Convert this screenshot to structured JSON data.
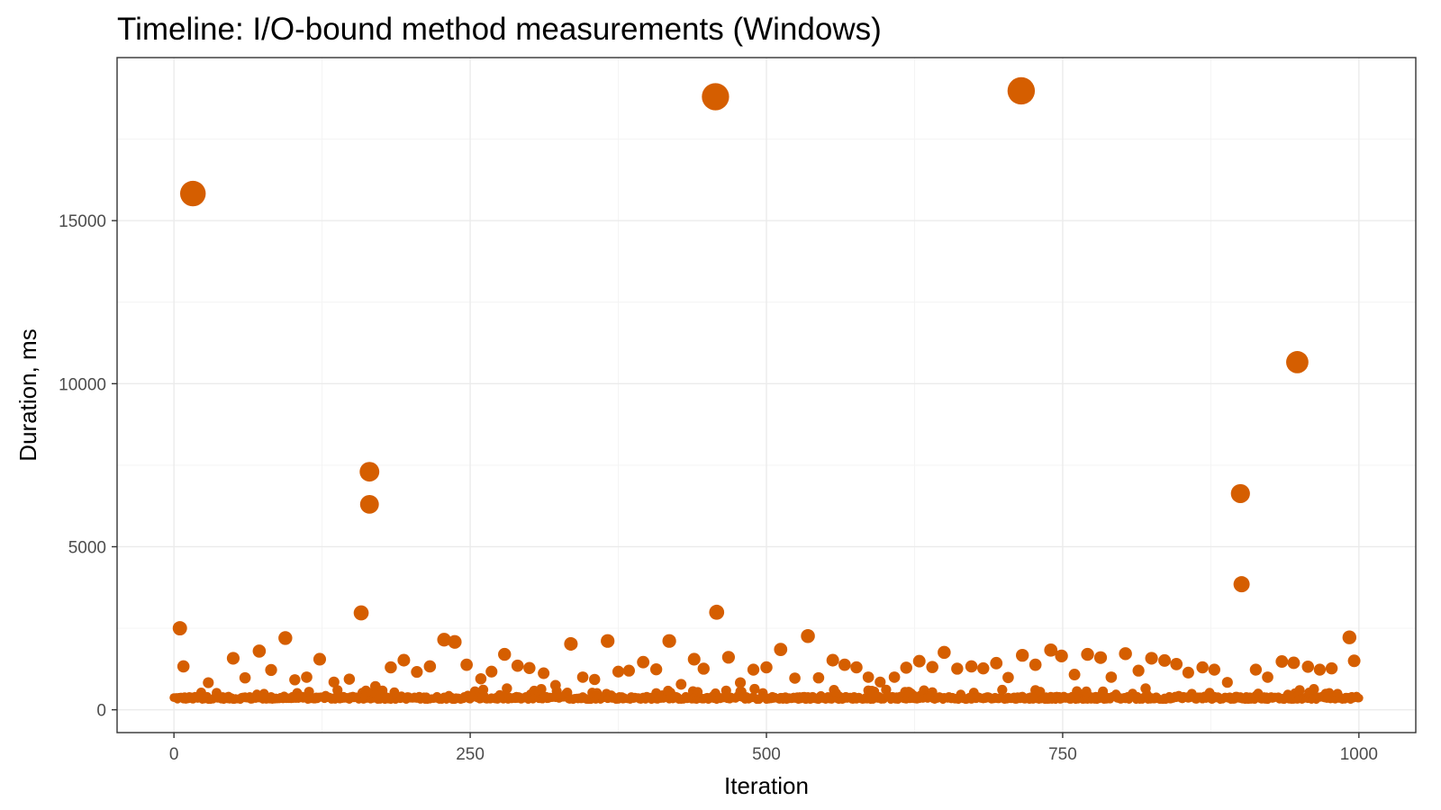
{
  "chart_data": {
    "type": "scatter",
    "title": "Timeline: I/O-bound method measurements (Windows)",
    "xlabel": "Iteration",
    "ylabel": "Duration, ms",
    "xlim": [
      -48,
      1048
    ],
    "ylim": [
      -700,
      20000
    ],
    "x_ticks": [
      0,
      250,
      500,
      750,
      1000
    ],
    "x_tick_labels": [
      "0",
      "250",
      "500",
      "750",
      "1000"
    ],
    "y_ticks": [
      0,
      5000,
      10000,
      15000
    ],
    "y_tick_labels": [
      "0",
      "5000",
      "10000",
      "15000"
    ],
    "grid": true,
    "legend": "none",
    "point_color": "#D55E00",
    "point_size_by": "duration",
    "baseline": {
      "x_range": [
        0,
        1000
      ],
      "typical_value": 330,
      "jitter": 120,
      "count": 1001
    },
    "points": [
      {
        "x": 5,
        "y": 2500
      },
      {
        "x": 8,
        "y": 1330
      },
      {
        "x": 16,
        "y": 15830
      },
      {
        "x": 29,
        "y": 830
      },
      {
        "x": 50,
        "y": 1580
      },
      {
        "x": 60,
        "y": 980
      },
      {
        "x": 72,
        "y": 1800
      },
      {
        "x": 82,
        "y": 1220
      },
      {
        "x": 94,
        "y": 2200
      },
      {
        "x": 102,
        "y": 920
      },
      {
        "x": 112,
        "y": 1000
      },
      {
        "x": 123,
        "y": 1550
      },
      {
        "x": 135,
        "y": 850
      },
      {
        "x": 148,
        "y": 940
      },
      {
        "x": 158,
        "y": 2970
      },
      {
        "x": 165,
        "y": 7300
      },
      {
        "x": 165,
        "y": 6300
      },
      {
        "x": 170,
        "y": 720
      },
      {
        "x": 183,
        "y": 1300
      },
      {
        "x": 194,
        "y": 1520
      },
      {
        "x": 205,
        "y": 1160
      },
      {
        "x": 216,
        "y": 1330
      },
      {
        "x": 228,
        "y": 2150
      },
      {
        "x": 237,
        "y": 2080
      },
      {
        "x": 247,
        "y": 1380
      },
      {
        "x": 259,
        "y": 950
      },
      {
        "x": 268,
        "y": 1170
      },
      {
        "x": 279,
        "y": 1700
      },
      {
        "x": 290,
        "y": 1350
      },
      {
        "x": 300,
        "y": 1280
      },
      {
        "x": 312,
        "y": 1120
      },
      {
        "x": 322,
        "y": 750
      },
      {
        "x": 335,
        "y": 2020
      },
      {
        "x": 345,
        "y": 1000
      },
      {
        "x": 355,
        "y": 930
      },
      {
        "x": 366,
        "y": 2110
      },
      {
        "x": 375,
        "y": 1170
      },
      {
        "x": 384,
        "y": 1200
      },
      {
        "x": 396,
        "y": 1460
      },
      {
        "x": 407,
        "y": 1240
      },
      {
        "x": 418,
        "y": 2110
      },
      {
        "x": 428,
        "y": 780
      },
      {
        "x": 439,
        "y": 1550
      },
      {
        "x": 447,
        "y": 1260
      },
      {
        "x": 457,
        "y": 18800
      },
      {
        "x": 458,
        "y": 2990
      },
      {
        "x": 468,
        "y": 1610
      },
      {
        "x": 478,
        "y": 830
      },
      {
        "x": 489,
        "y": 1230
      },
      {
        "x": 500,
        "y": 1300
      },
      {
        "x": 512,
        "y": 1850
      },
      {
        "x": 524,
        "y": 970
      },
      {
        "x": 535,
        "y": 2260
      },
      {
        "x": 544,
        "y": 980
      },
      {
        "x": 556,
        "y": 1520
      },
      {
        "x": 566,
        "y": 1380
      },
      {
        "x": 576,
        "y": 1300
      },
      {
        "x": 586,
        "y": 1000
      },
      {
        "x": 596,
        "y": 850
      },
      {
        "x": 608,
        "y": 1000
      },
      {
        "x": 618,
        "y": 1290
      },
      {
        "x": 629,
        "y": 1490
      },
      {
        "x": 640,
        "y": 1310
      },
      {
        "x": 650,
        "y": 1760
      },
      {
        "x": 661,
        "y": 1260
      },
      {
        "x": 673,
        "y": 1330
      },
      {
        "x": 683,
        "y": 1270
      },
      {
        "x": 694,
        "y": 1430
      },
      {
        "x": 704,
        "y": 990
      },
      {
        "x": 715,
        "y": 18980
      },
      {
        "x": 716,
        "y": 1670
      },
      {
        "x": 727,
        "y": 1380
      },
      {
        "x": 740,
        "y": 1830
      },
      {
        "x": 749,
        "y": 1650
      },
      {
        "x": 760,
        "y": 1080
      },
      {
        "x": 771,
        "y": 1700
      },
      {
        "x": 782,
        "y": 1600
      },
      {
        "x": 791,
        "y": 1000
      },
      {
        "x": 803,
        "y": 1720
      },
      {
        "x": 814,
        "y": 1200
      },
      {
        "x": 825,
        "y": 1580
      },
      {
        "x": 836,
        "y": 1510
      },
      {
        "x": 846,
        "y": 1400
      },
      {
        "x": 856,
        "y": 1140
      },
      {
        "x": 868,
        "y": 1300
      },
      {
        "x": 878,
        "y": 1230
      },
      {
        "x": 889,
        "y": 840
      },
      {
        "x": 900,
        "y": 6630
      },
      {
        "x": 901,
        "y": 3850
      },
      {
        "x": 913,
        "y": 1230
      },
      {
        "x": 923,
        "y": 1000
      },
      {
        "x": 935,
        "y": 1480
      },
      {
        "x": 945,
        "y": 1440
      },
      {
        "x": 948,
        "y": 10660
      },
      {
        "x": 957,
        "y": 1320
      },
      {
        "x": 967,
        "y": 1230
      },
      {
        "x": 977,
        "y": 1270
      },
      {
        "x": 992,
        "y": 2220
      },
      {
        "x": 996,
        "y": 1500
      }
    ]
  }
}
